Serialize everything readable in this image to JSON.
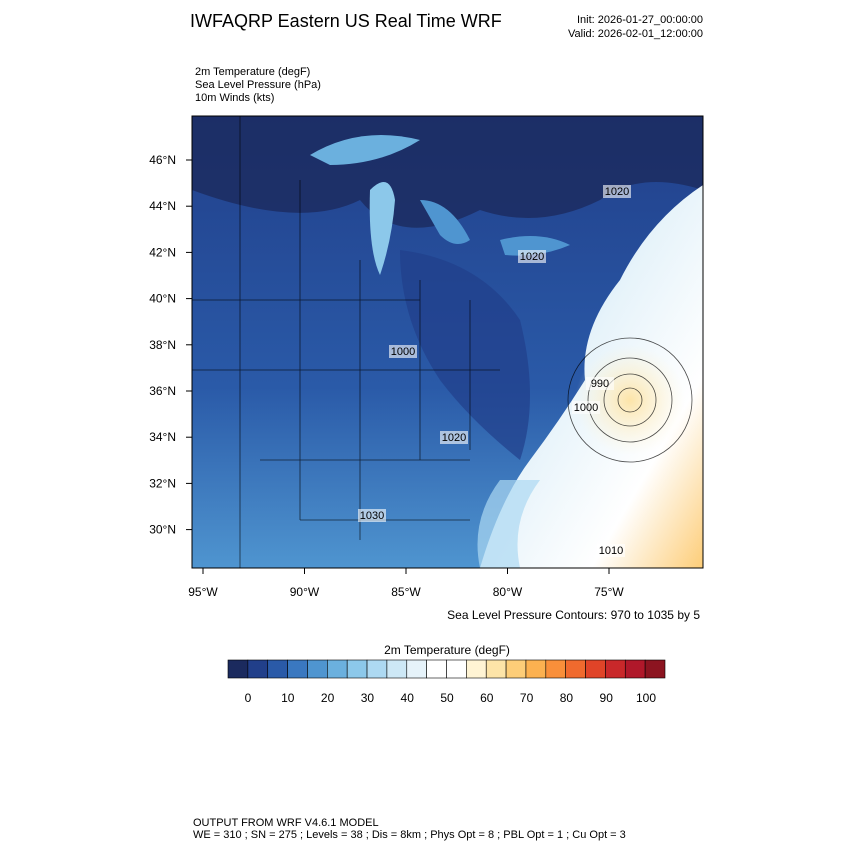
{
  "header": {
    "title": "IWFAQRP Eastern US Real Time WRF",
    "init": "Init: 2026-01-27_00:00:00",
    "valid": "Valid: 2026-02-01_12:00:00"
  },
  "fields": [
    "2m Temperature   (degF)",
    "Sea Level Pressure   (hPa)",
    "10m Winds   (kts)"
  ],
  "map": {
    "lat_labels": [
      "46°N",
      "44°N",
      "42°N",
      "40°N",
      "38°N",
      "36°N",
      "34°N",
      "32°N",
      "30°N"
    ],
    "lon_labels": [
      "95°W",
      "90°W",
      "85°W",
      "80°W",
      "75°W"
    ],
    "contour_labels": [
      "1030",
      "1020",
      "1020",
      "1020",
      "1010",
      "990",
      "1000",
      "1000"
    ],
    "contour_note": "Sea Level Pressure Contours: 970 to 1035 by 5"
  },
  "colorbar": {
    "title": "2m Temperature  (degF)",
    "ticks": [
      0,
      10,
      20,
      30,
      40,
      50,
      60,
      70,
      80,
      90,
      100
    ],
    "colors": [
      "#1b2a5e",
      "#213f8a",
      "#2a5aa8",
      "#3a78c0",
      "#4f95d0",
      "#6bb0de",
      "#8cc8ea",
      "#add9f2",
      "#cde8f6",
      "#e6f3fa",
      "#ffffff",
      "#ffffff",
      "#fff4d4",
      "#fde4a8",
      "#fdcd78",
      "#fcb150",
      "#f98f3a",
      "#f06a2e",
      "#e04428",
      "#c9282a",
      "#b0182a",
      "#8c1420"
    ]
  },
  "footer": [
    "OUTPUT FROM WRF V4.6.1 MODEL",
    "WE = 310 ; SN = 275 ; Levels = 38 ; Dis = 8km ; Phys Opt = 8 ; PBL Opt = 1 ; Cu Opt = 3"
  ]
}
